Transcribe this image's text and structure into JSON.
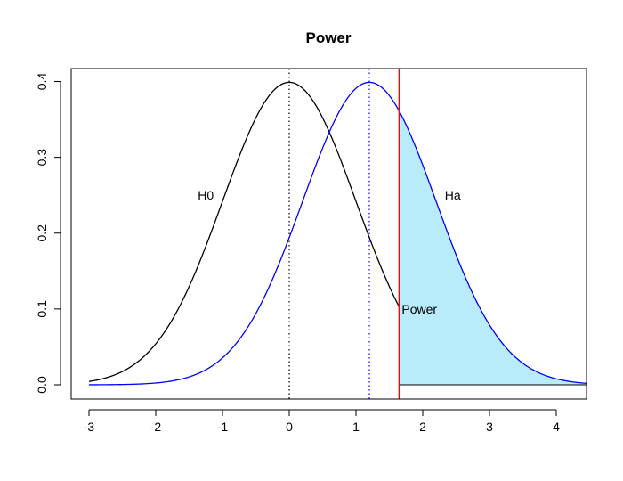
{
  "chart_data": {
    "type": "line",
    "title": "Power",
    "xlabel": "",
    "ylabel": "",
    "xlim": [
      -3,
      4.5
    ],
    "ylim": [
      0,
      0.4
    ],
    "x_ticks": [
      "-3",
      "-2",
      "-1",
      "0",
      "1",
      "2",
      "3",
      "4"
    ],
    "y_ticks": [
      "0.0",
      "0.1",
      "0.2",
      "0.3",
      "0.4"
    ],
    "grid": false,
    "series": [
      {
        "name": "H0",
        "distribution": "normal",
        "mean": 0,
        "sd": 1,
        "x_range": [
          -3,
          1.645
        ],
        "color": "#000000"
      },
      {
        "name": "Ha",
        "distribution": "normal",
        "mean": 1.2,
        "sd": 1,
        "x_range": [
          -3,
          4.5
        ],
        "color": "#0000ff"
      }
    ],
    "mean_lines": [
      {
        "x": 0,
        "color": "#000000",
        "style": "dotted"
      },
      {
        "x": 1.2,
        "color": "#0000ff",
        "style": "dotted"
      }
    ],
    "critical_value": {
      "x": 1.645,
      "color": "#ff0000"
    },
    "shaded_region": {
      "label": "Power",
      "from": 1.645,
      "to": 4.5,
      "fill": "#b8ecfa"
    },
    "annotations": [
      {
        "text": "H0",
        "x": -1.25,
        "y": 0.25
      },
      {
        "text": "Ha",
        "x": 2.45,
        "y": 0.25
      },
      {
        "text": "Power",
        "x": 1.95,
        "y": 0.1
      }
    ]
  }
}
